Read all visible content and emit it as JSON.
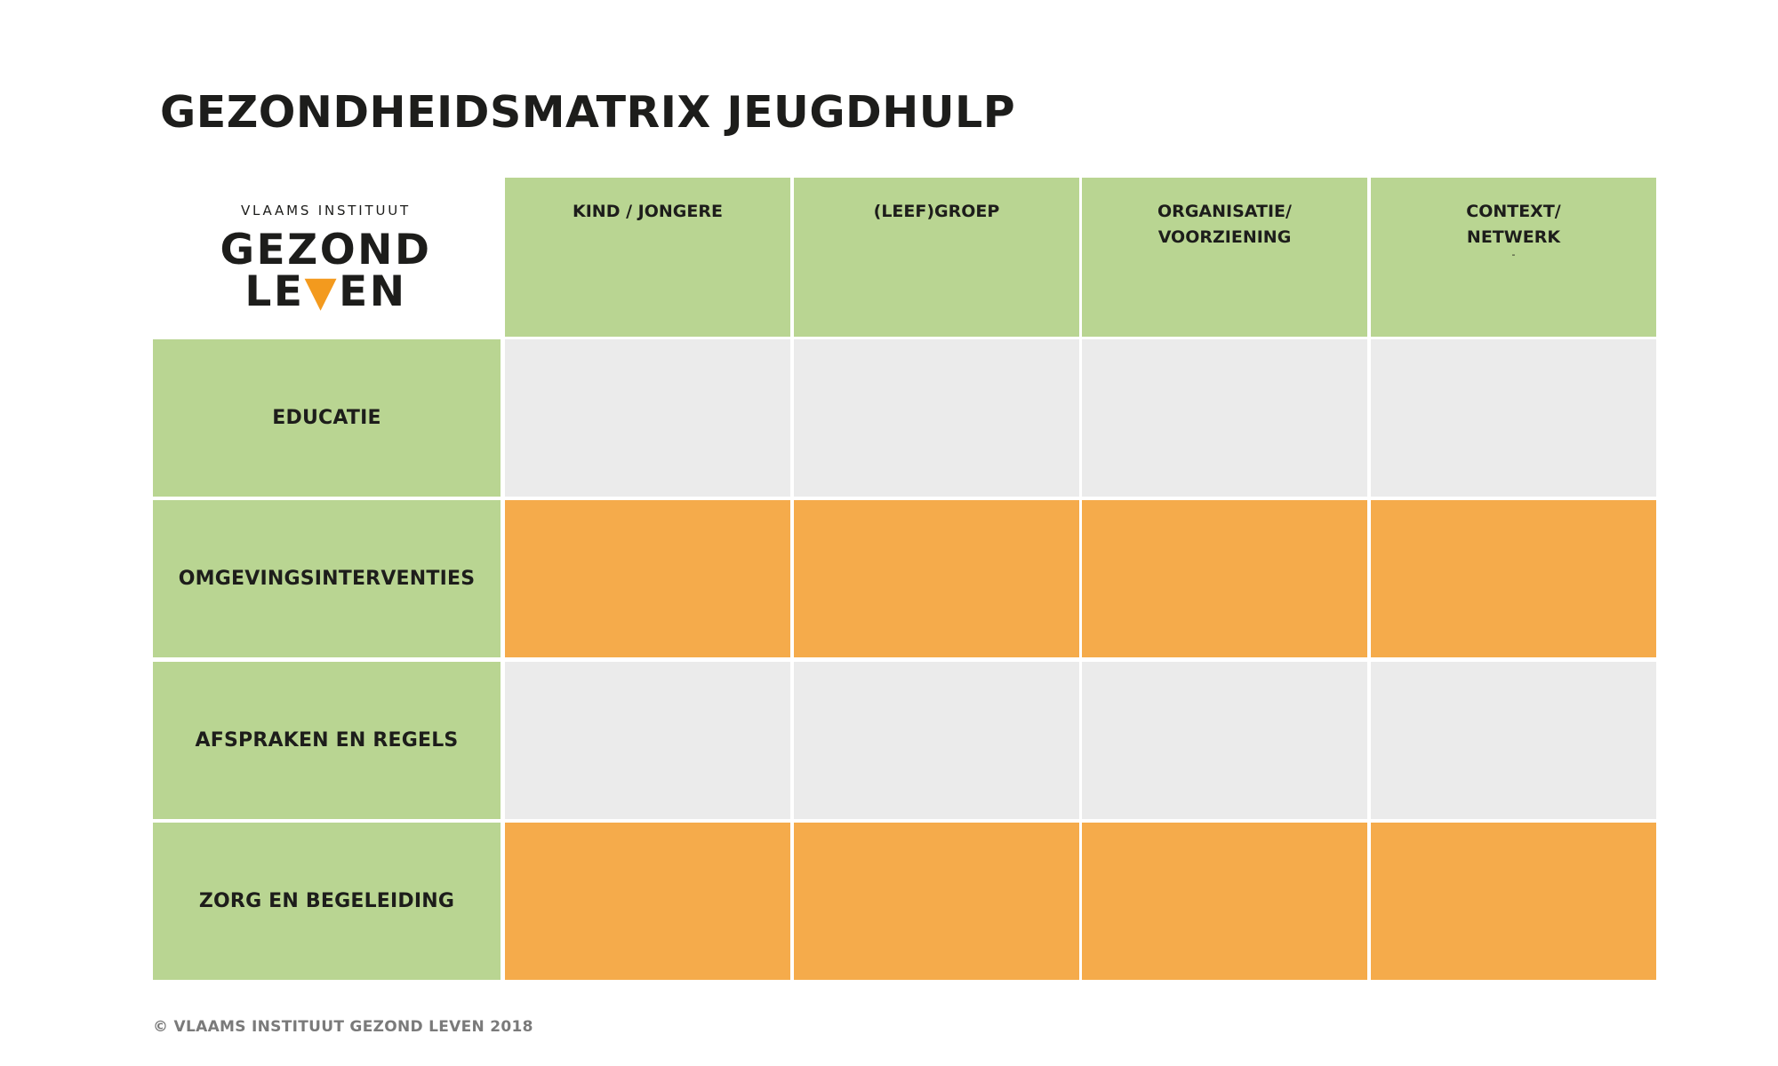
{
  "title": "GEZONDHEIDSMATRIX JEUGDHULP",
  "logo": {
    "subtitle": "VLAAMS INSTITUUT",
    "line1": "GEZOND",
    "line2_pre": "LE",
    "line2_mark": "▼",
    "line2_post": "EN",
    "accent_color": "#f39a1e"
  },
  "columns": [
    {
      "label": "KIND / JONGERE",
      "extra": ""
    },
    {
      "label": "(LEEF)GROEP",
      "extra": ""
    },
    {
      "label": "ORGANISATIE/\nVOORZIENING",
      "extra": ""
    },
    {
      "label": "CONTEXT/\nNETWERK",
      "extra": "-"
    }
  ],
  "rows": [
    {
      "label": "EDUCATIE",
      "fill": "grey"
    },
    {
      "label": "OMGEVINGSINTERVENTIES",
      "fill": "orange"
    },
    {
      "label": "AFSPRAKEN EN REGELS",
      "fill": "grey"
    },
    {
      "label": "ZORG EN BEGELEIDING",
      "fill": "orange"
    }
  ],
  "colors": {
    "green": "#b9d592",
    "grey": "#ebebeb",
    "orange": "#f5ab4b"
  },
  "footer": "© VLAAMS INSTITUUT GEZOND LEVEN 2018"
}
